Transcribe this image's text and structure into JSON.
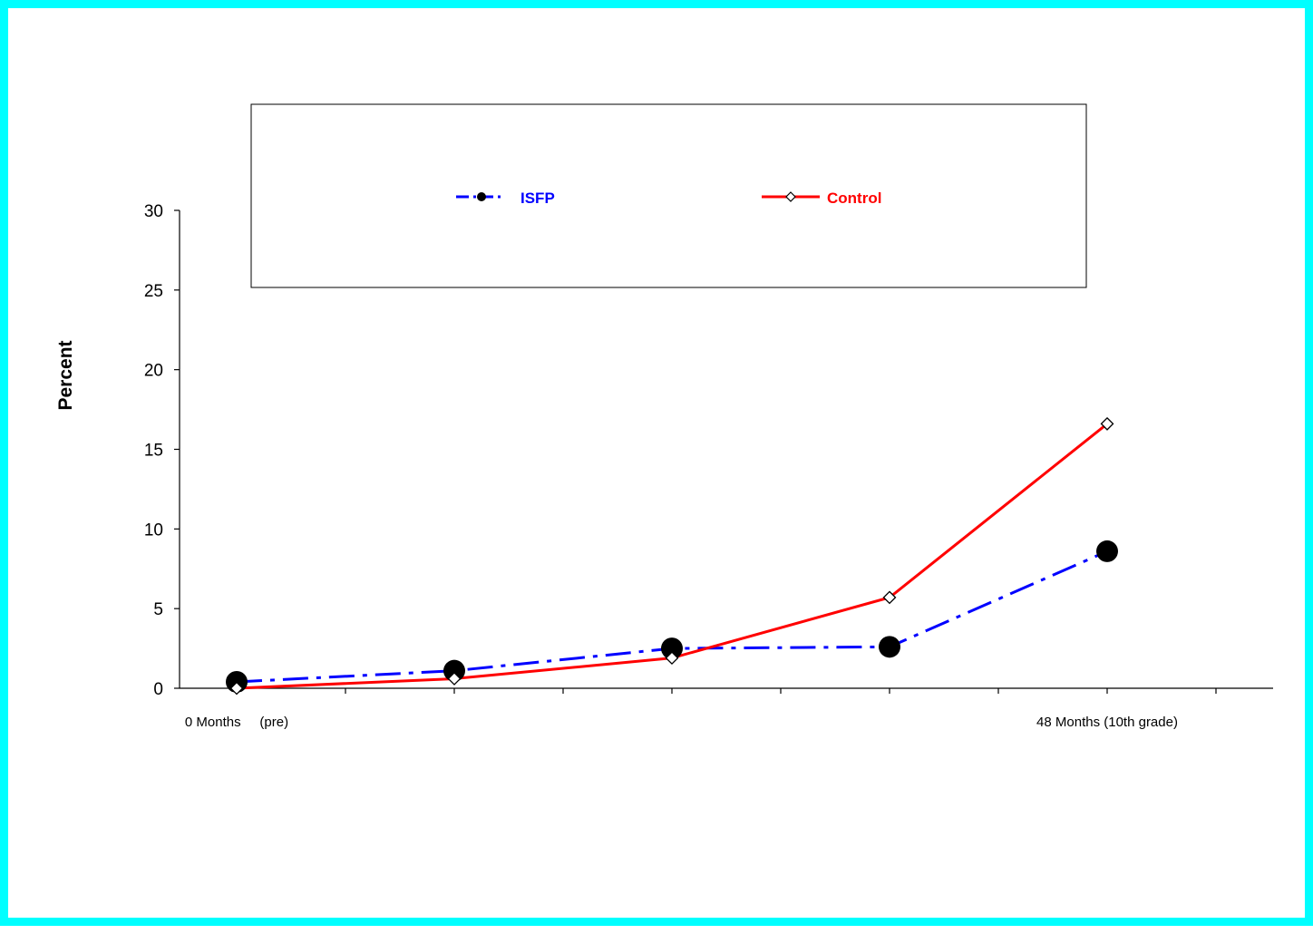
{
  "chart_data": {
    "type": "line",
    "title": "",
    "xlabel": "",
    "ylabel": "Percent",
    "ylim": [
      0,
      30
    ],
    "yticks": [
      0,
      5,
      10,
      15,
      20,
      25,
      30
    ],
    "x_tick_labels": [
      {
        "position": 0,
        "text": "0 Months     (pre)"
      },
      {
        "position": 4,
        "text": "48 Months (10th grade)"
      }
    ],
    "x_count": 5,
    "grid": false,
    "legend_placement": "top-center",
    "series": [
      {
        "name": "ISFP",
        "color": "#0000ff",
        "line_style": "dash-dot",
        "marker": "filled-circle",
        "marker_color": "#000000",
        "values": [
          0.4,
          1.1,
          2.5,
          2.6,
          8.6
        ]
      },
      {
        "name": "Control",
        "color": "#ff0000",
        "line_style": "solid",
        "marker": "open-diamond",
        "marker_color": "#000000",
        "values": [
          0.0,
          0.6,
          1.9,
          5.7,
          16.6
        ]
      }
    ]
  }
}
